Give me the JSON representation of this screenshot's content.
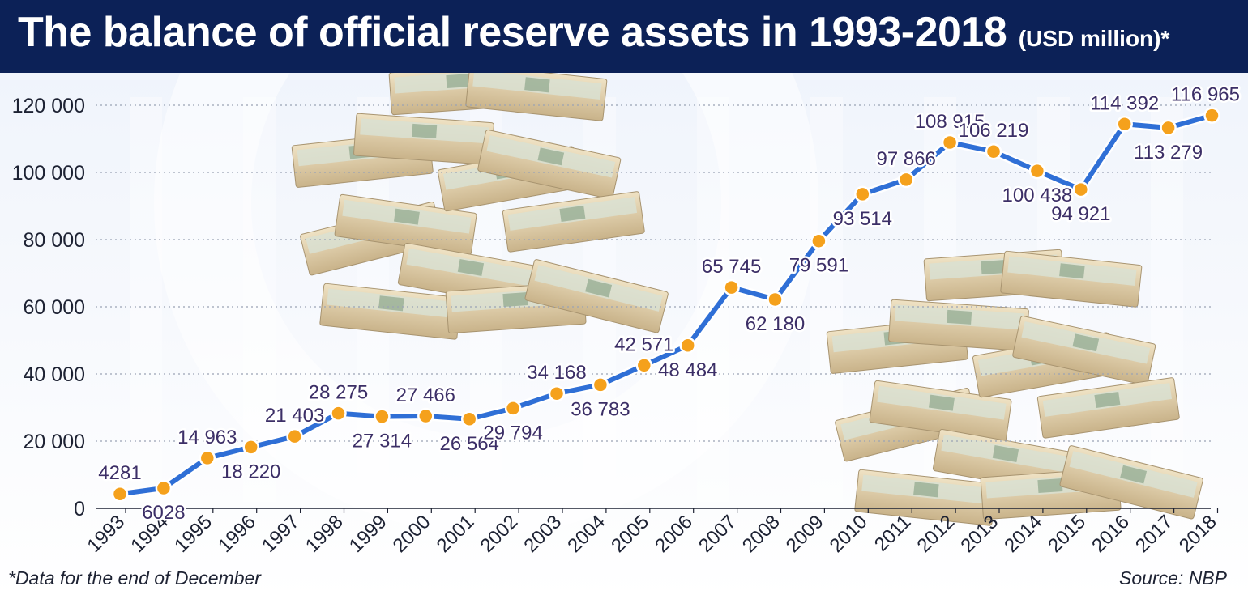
{
  "header": {
    "title": "The balance of official reserve assets in 1993-2018",
    "unit": "(USD million)*"
  },
  "footnote": "*Data for the end of December",
  "source": "Source: NBP",
  "colors": {
    "header_bg": "#0c2157",
    "line": "#2f6fd6",
    "marker_fill": "#f5a11c",
    "marker_stroke": "#ffffff",
    "label_text": "#3c2f67",
    "label_halo": "#ffffff",
    "gridline": "#9aa3b5",
    "axis_text": "#1d2233"
  },
  "decor": [
    "banknote-stack-left",
    "banknote-stack-right",
    "watermark-circle"
  ],
  "chart_data": {
    "type": "line",
    "x": [
      "1993",
      "1994",
      "1995",
      "1996",
      "1997",
      "1998",
      "1999",
      "2000",
      "2001",
      "2002",
      "2003",
      "2004",
      "2005",
      "2006",
      "2007",
      "2008",
      "2009",
      "2010",
      "2011",
      "2012",
      "2013",
      "2014",
      "2015",
      "2016",
      "2017",
      "2018"
    ],
    "values": [
      4281,
      6028,
      14963,
      18220,
      21403,
      28275,
      27314,
      27466,
      26564,
      29794,
      34168,
      36783,
      42571,
      48484,
      65745,
      62180,
      79591,
      93514,
      97866,
      108915,
      106219,
      100438,
      94921,
      114392,
      113279,
      116965
    ],
    "data_labels": [
      "4281",
      "6028",
      "14 963",
      "18 220",
      "21 403",
      "28 275",
      "27 314",
      "27 466",
      "26 564",
      "29 794",
      "34 168",
      "36 783",
      "42 571",
      "48 484",
      "65 745",
      "62 180",
      "79 591",
      "93 514",
      "97 866",
      "108 915",
      "106 219",
      "100 438",
      "94 921",
      "114 392",
      "113 279",
      "116 965"
    ],
    "label_side": [
      "above",
      "below",
      "above",
      "below",
      "above",
      "above",
      "below",
      "above",
      "below",
      "below",
      "above",
      "below",
      "above",
      "below",
      "above",
      "below",
      "below",
      "below",
      "above",
      "above",
      "above",
      "below",
      "below",
      "above",
      "below",
      "above"
    ],
    "y_ticks": [
      0,
      20000,
      40000,
      60000,
      80000,
      100000,
      120000
    ],
    "y_tick_labels": [
      "0",
      "20 000",
      "40 000",
      "60 000",
      "80 000",
      "100 000",
      "120 000"
    ],
    "ylim": [
      0,
      120000
    ],
    "grid": "horizontal-dotted",
    "xlabel": "",
    "ylabel": ""
  }
}
